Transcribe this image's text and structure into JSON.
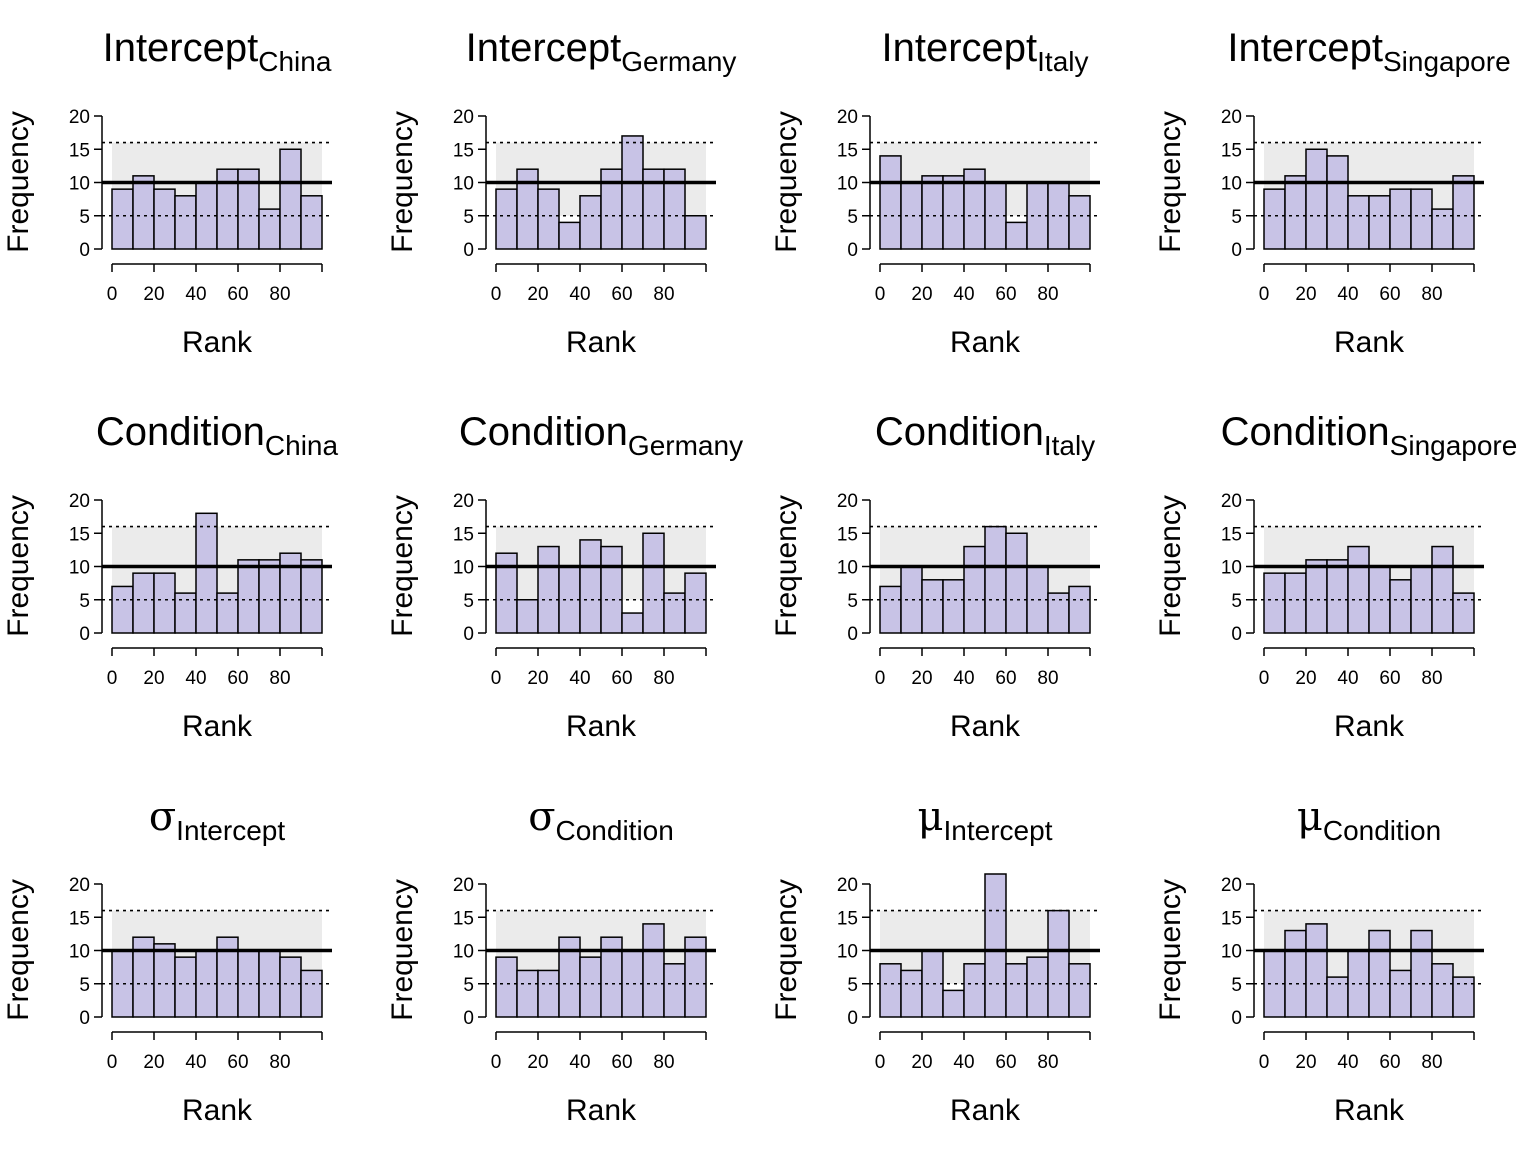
{
  "chart_data": [
    {
      "type": "bar",
      "title": {
        "main": "Intercept",
        "sub": "China"
      },
      "xlabel": "Rank",
      "ylabel": "Frequency",
      "xticks": [
        0,
        20,
        40,
        60,
        80
      ],
      "yticks": [
        0,
        5,
        10,
        15,
        20
      ],
      "xlim": [
        0,
        100
      ],
      "ylim": [
        0,
        20
      ],
      "bin_width": 10,
      "values": [
        9,
        11,
        9,
        8,
        10,
        12,
        12,
        6,
        15,
        8
      ],
      "expected": 10,
      "band": [
        5,
        16
      ]
    },
    {
      "type": "bar",
      "title": {
        "main": "Intercept",
        "sub": "Germany"
      },
      "xlabel": "Rank",
      "ylabel": "Frequency",
      "xticks": [
        0,
        20,
        40,
        60,
        80
      ],
      "yticks": [
        0,
        5,
        10,
        15,
        20
      ],
      "xlim": [
        0,
        100
      ],
      "ylim": [
        0,
        20
      ],
      "bin_width": 10,
      "values": [
        9,
        12,
        9,
        4,
        8,
        12,
        17,
        12,
        12,
        5
      ],
      "expected": 10,
      "band": [
        5,
        16
      ]
    },
    {
      "type": "bar",
      "title": {
        "main": "Intercept",
        "sub": "Italy"
      },
      "xlabel": "Rank",
      "ylabel": "Frequency",
      "xticks": [
        0,
        20,
        40,
        60,
        80
      ],
      "yticks": [
        0,
        5,
        10,
        15,
        20
      ],
      "xlim": [
        0,
        100
      ],
      "ylim": [
        0,
        20
      ],
      "bin_width": 10,
      "values": [
        14,
        10,
        11,
        11,
        12,
        10,
        4,
        10,
        10,
        8
      ],
      "expected": 10,
      "band": [
        5,
        16
      ]
    },
    {
      "type": "bar",
      "title": {
        "main": "Intercept",
        "sub": "Singapore"
      },
      "xlabel": "Rank",
      "ylabel": "Frequency",
      "xticks": [
        0,
        20,
        40,
        60,
        80
      ],
      "yticks": [
        0,
        5,
        10,
        15,
        20
      ],
      "xlim": [
        0,
        100
      ],
      "ylim": [
        0,
        20
      ],
      "bin_width": 10,
      "values": [
        9,
        11,
        15,
        14,
        8,
        8,
        9,
        9,
        6,
        11
      ],
      "expected": 10,
      "band": [
        5,
        16
      ]
    },
    {
      "type": "bar",
      "title": {
        "main": "Condition",
        "sub": "China"
      },
      "xlabel": "Rank",
      "ylabel": "Frequency",
      "xticks": [
        0,
        20,
        40,
        60,
        80
      ],
      "yticks": [
        0,
        5,
        10,
        15,
        20
      ],
      "xlim": [
        0,
        100
      ],
      "ylim": [
        0,
        20
      ],
      "bin_width": 10,
      "values": [
        7,
        9,
        9,
        6,
        18,
        6,
        11,
        11,
        12,
        11
      ],
      "expected": 10,
      "band": [
        5,
        16
      ]
    },
    {
      "type": "bar",
      "title": {
        "main": "Condition",
        "sub": "Germany"
      },
      "xlabel": "Rank",
      "ylabel": "Frequency",
      "xticks": [
        0,
        20,
        40,
        60,
        80
      ],
      "yticks": [
        0,
        5,
        10,
        15,
        20
      ],
      "xlim": [
        0,
        100
      ],
      "ylim": [
        0,
        20
      ],
      "bin_width": 10,
      "values": [
        12,
        5,
        13,
        10,
        14,
        13,
        3,
        15,
        6,
        9
      ],
      "expected": 10,
      "band": [
        5,
        16
      ]
    },
    {
      "type": "bar",
      "title": {
        "main": "Condition",
        "sub": "Italy"
      },
      "xlabel": "Rank",
      "ylabel": "Frequency",
      "xticks": [
        0,
        20,
        40,
        60,
        80
      ],
      "yticks": [
        0,
        5,
        10,
        15,
        20
      ],
      "xlim": [
        0,
        100
      ],
      "ylim": [
        0,
        20
      ],
      "bin_width": 10,
      "values": [
        7,
        10,
        8,
        8,
        13,
        16,
        15,
        10,
        6,
        7
      ],
      "expected": 10,
      "band": [
        5,
        16
      ]
    },
    {
      "type": "bar",
      "title": {
        "main": "Condition",
        "sub": "Singapore"
      },
      "xlabel": "Rank",
      "ylabel": "Frequency",
      "xticks": [
        0,
        20,
        40,
        60,
        80
      ],
      "yticks": [
        0,
        5,
        10,
        15,
        20
      ],
      "xlim": [
        0,
        100
      ],
      "ylim": [
        0,
        20
      ],
      "bin_width": 10,
      "values": [
        9,
        9,
        11,
        11,
        13,
        10,
        8,
        10,
        13,
        6
      ],
      "expected": 10,
      "band": [
        5,
        16
      ]
    },
    {
      "type": "bar",
      "title": {
        "main": "σ",
        "sub": "Intercept"
      },
      "xlabel": "Rank",
      "ylabel": "Frequency",
      "xticks": [
        0,
        20,
        40,
        60,
        80
      ],
      "yticks": [
        0,
        5,
        10,
        15,
        20
      ],
      "xlim": [
        0,
        100
      ],
      "ylim": [
        0,
        20
      ],
      "bin_width": 10,
      "values": [
        10,
        12,
        11,
        9,
        10,
        12,
        10,
        10,
        9,
        7
      ],
      "expected": 10,
      "band": [
        5,
        16
      ]
    },
    {
      "type": "bar",
      "title": {
        "main": "σ",
        "sub": "Condition"
      },
      "xlabel": "Rank",
      "ylabel": "Frequency",
      "xticks": [
        0,
        20,
        40,
        60,
        80
      ],
      "yticks": [
        0,
        5,
        10,
        15,
        20
      ],
      "xlim": [
        0,
        100
      ],
      "ylim": [
        0,
        20
      ],
      "bin_width": 10,
      "values": [
        9,
        7,
        7,
        12,
        9,
        12,
        10,
        14,
        8,
        12
      ],
      "expected": 10,
      "band": [
        5,
        16
      ]
    },
    {
      "type": "bar",
      "title": {
        "main": "μ",
        "sub": "Intercept"
      },
      "xlabel": "Rank",
      "ylabel": "Frequency",
      "xticks": [
        0,
        20,
        40,
        60,
        80
      ],
      "yticks": [
        0,
        5,
        10,
        15,
        20
      ],
      "xlim": [
        0,
        100
      ],
      "ylim": [
        0,
        20
      ],
      "bin_width": 10,
      "values": [
        8,
        7,
        10,
        4,
        8,
        22,
        8,
        9,
        16,
        8
      ],
      "expected": 10,
      "band": [
        5,
        16
      ]
    },
    {
      "type": "bar",
      "title": {
        "main": "μ",
        "sub": "Condition"
      },
      "xlabel": "Rank",
      "ylabel": "Frequency",
      "xticks": [
        0,
        20,
        40,
        60,
        80
      ],
      "yticks": [
        0,
        5,
        10,
        15,
        20
      ],
      "xlim": [
        0,
        100
      ],
      "ylim": [
        0,
        20
      ],
      "bin_width": 10,
      "values": [
        10,
        13,
        14,
        6,
        10,
        13,
        7,
        13,
        8,
        6
      ],
      "expected": 10,
      "band": [
        5,
        16
      ]
    }
  ],
  "colors": {
    "bar_fill": "#c8c3e6",
    "bar_stroke": "#000000",
    "band_fill": "#ebebeb",
    "expected_line": "#000000",
    "band_line": "#000000"
  }
}
